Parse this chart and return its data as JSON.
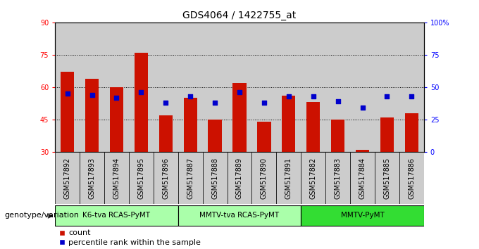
{
  "title": "GDS4064 / 1422755_at",
  "samples": [
    "GSM517892",
    "GSM517893",
    "GSM517894",
    "GSM517895",
    "GSM517896",
    "GSM517887",
    "GSM517888",
    "GSM517889",
    "GSM517890",
    "GSM517891",
    "GSM517882",
    "GSM517883",
    "GSM517884",
    "GSM517885",
    "GSM517886"
  ],
  "count_values": [
    67,
    64,
    60,
    76,
    47,
    55,
    45,
    62,
    44,
    56,
    53,
    45,
    31,
    46,
    48
  ],
  "percentile_values": [
    45,
    44,
    42,
    46,
    38,
    43,
    38,
    46,
    38,
    43,
    43,
    39,
    34,
    43,
    43
  ],
  "ylim_left": [
    30,
    90
  ],
  "ylim_right": [
    0,
    100
  ],
  "yticks_left": [
    30,
    45,
    60,
    75,
    90
  ],
  "ytick_labels_left": [
    "30",
    "45",
    "60",
    "75",
    "90"
  ],
  "yticks_right_vals": [
    0,
    25,
    50,
    75,
    100
  ],
  "ytick_labels_right": [
    "0",
    "25",
    "50",
    "75",
    "100%"
  ],
  "groups": [
    {
      "label": "K6-tva RCAS-PyMT",
      "start": 0,
      "end": 5,
      "color": "#AAFFAA"
    },
    {
      "label": "MMTV-tva RCAS-PyMT",
      "start": 5,
      "end": 10,
      "color": "#AAFFAA"
    },
    {
      "label": "MMTV-PyMT",
      "start": 10,
      "end": 15,
      "color": "#33DD33"
    }
  ],
  "bar_color": "#CC1100",
  "dot_color": "#0000CC",
  "bar_width": 0.55,
  "genotype_label": "genotype/variation",
  "legend_count": "count",
  "legend_percentile": "percentile rank within the sample",
  "title_fontsize": 10,
  "tick_fontsize": 7,
  "label_fontsize": 8
}
